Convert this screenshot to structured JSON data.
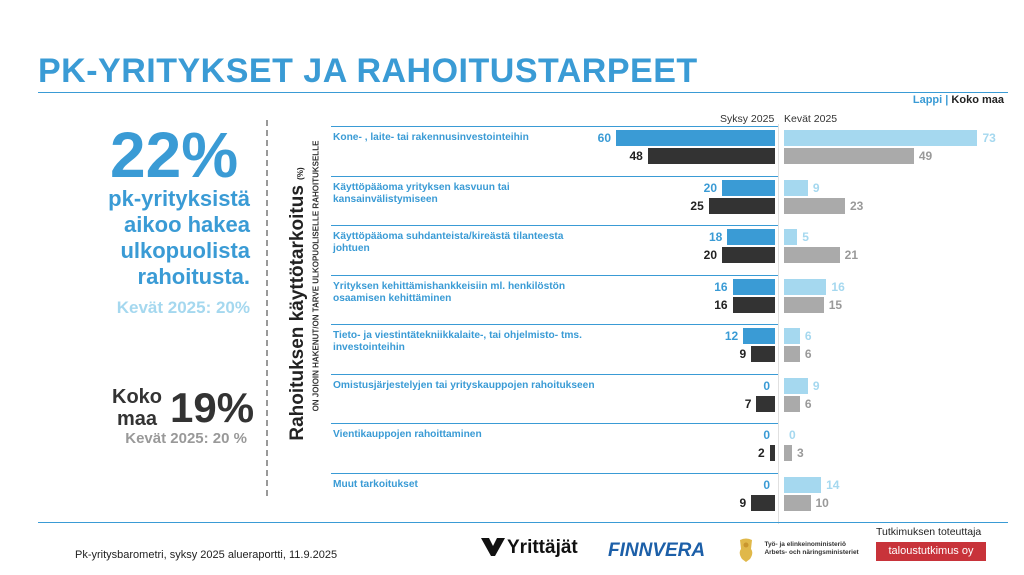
{
  "title": "PK-YRITYKSET JA RAHOITUSTARPEET",
  "region_legend": {
    "lappi": "Lappi",
    "separator": "|",
    "koko_maa": "Koko maa"
  },
  "headline": {
    "pct": "22%",
    "description": "pk-yrityksistä aikoo hakea ulkopuolista rahoitusta.",
    "previous": "Kevät 2025: 20%"
  },
  "national": {
    "label": "Koko maa",
    "pct": "19%",
    "previous": "Kevät 2025: 20 %"
  },
  "vertical_title": "Rahoituksen käyttötarkoitus",
  "vertical_title_unit": "(%)",
  "vertical_subtitle": "ON JOIOIN HAKENUT/ON TARVE ULKOPUOLISELLE RAHOITUKSELLE",
  "chart_data": {
    "type": "bar",
    "columns": [
      "Syksy 2025",
      "Kevät 2025"
    ],
    "categories": [
      "Kone- , laite- tai rakennusinvestointeihin",
      "Käyttöpääoma yrityksen kasvuun tai kansainvälistymiseen",
      "Käyttöpääoma suhdanteista/kireästä tilanteesta johtuen",
      "Yrityksen kehittämishankkeisiin ml. henkilöstön osaamisen kehittäminen",
      "Tieto- ja viestintätekniikkalaite-, tai ohjelmisto- tms. investointeihin",
      "Omistusjärjestelyjen tai yrityskauppojen rahoitukseen",
      "Vientikauppojen rahoittaminen",
      "Muut tarkoitukset"
    ],
    "series": [
      {
        "name": "Syksy 2025 Lappi",
        "color": "#3a9bd5",
        "values": [
          60,
          20,
          18,
          16,
          12,
          0,
          0,
          0
        ]
      },
      {
        "name": "Syksy 2025 Koko maa",
        "color": "#333333",
        "values": [
          48,
          25,
          20,
          16,
          9,
          7,
          2,
          9
        ]
      },
      {
        "name": "Kevät 2025 Lappi",
        "color": "#a5d8ef",
        "values": [
          73,
          9,
          5,
          16,
          6,
          9,
          0,
          14
        ]
      },
      {
        "name": "Kevät 2025 Koko maa",
        "color": "#aaaaaa",
        "values": [
          49,
          23,
          21,
          15,
          6,
          6,
          3,
          10
        ]
      }
    ]
  },
  "footer": {
    "source": "Pk-yritysbarometri, syksy 2025 alueraportti, 11.9.2025",
    "logo_yrittajat": "Yrittäjät",
    "logo_finnvera": "FINNVERA",
    "logo_tem": "Työ- ja elinkeinoministeriö Arbets- och näringsministeriet",
    "research_label": "Tutkimuksen toteuttaja",
    "research_org": "taloustutkimus oy"
  }
}
